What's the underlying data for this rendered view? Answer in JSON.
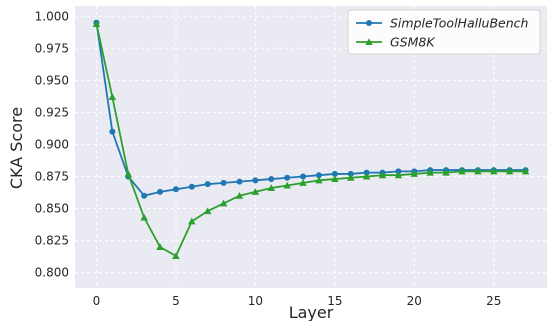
{
  "chart_data": {
    "type": "line",
    "title": "",
    "xlabel": "Layer",
    "ylabel": "CKA Score",
    "xlim": [
      -1.35,
      28.35
    ],
    "ylim": [
      0.788,
      1.008
    ],
    "xticks": [
      0,
      5,
      10,
      15,
      20,
      25
    ],
    "yticks": [
      0.8,
      0.825,
      0.85,
      0.875,
      0.9,
      0.925,
      0.95,
      0.975,
      1.0
    ],
    "xtick_labels": [
      "0",
      "5",
      "10",
      "15",
      "20",
      "25"
    ],
    "ytick_labels": [
      "0.800",
      "0.825",
      "0.850",
      "0.875",
      "0.900",
      "0.925",
      "0.950",
      "0.975",
      "1.000"
    ],
    "grid": true,
    "legend_position": "top-right",
    "x": [
      0,
      1,
      2,
      3,
      4,
      5,
      6,
      7,
      8,
      9,
      10,
      11,
      12,
      13,
      14,
      15,
      16,
      17,
      18,
      19,
      20,
      21,
      22,
      23,
      24,
      25,
      26,
      27
    ],
    "series": [
      {
        "name": "SimpleToolHalluBench",
        "color": "#1f77b4",
        "marker": "circle",
        "values": [
          0.995,
          0.91,
          0.875,
          0.86,
          0.863,
          0.865,
          0.867,
          0.869,
          0.87,
          0.871,
          0.872,
          0.873,
          0.874,
          0.875,
          0.876,
          0.877,
          0.877,
          0.878,
          0.878,
          0.879,
          0.879,
          0.88,
          0.88,
          0.88,
          0.88,
          0.88,
          0.88,
          0.88
        ]
      },
      {
        "name": "GSM8K",
        "color": "#2ca02c",
        "marker": "triangle",
        "values": [
          0.994,
          0.937,
          0.877,
          0.843,
          0.82,
          0.813,
          0.84,
          0.848,
          0.854,
          0.86,
          0.863,
          0.866,
          0.868,
          0.87,
          0.872,
          0.873,
          0.874,
          0.875,
          0.876,
          0.876,
          0.877,
          0.878,
          0.878,
          0.879,
          0.879,
          0.879,
          0.879,
          0.879
        ]
      }
    ]
  },
  "colors": {
    "plot_background": "#eaeaf2",
    "grid": "#ffffff"
  }
}
